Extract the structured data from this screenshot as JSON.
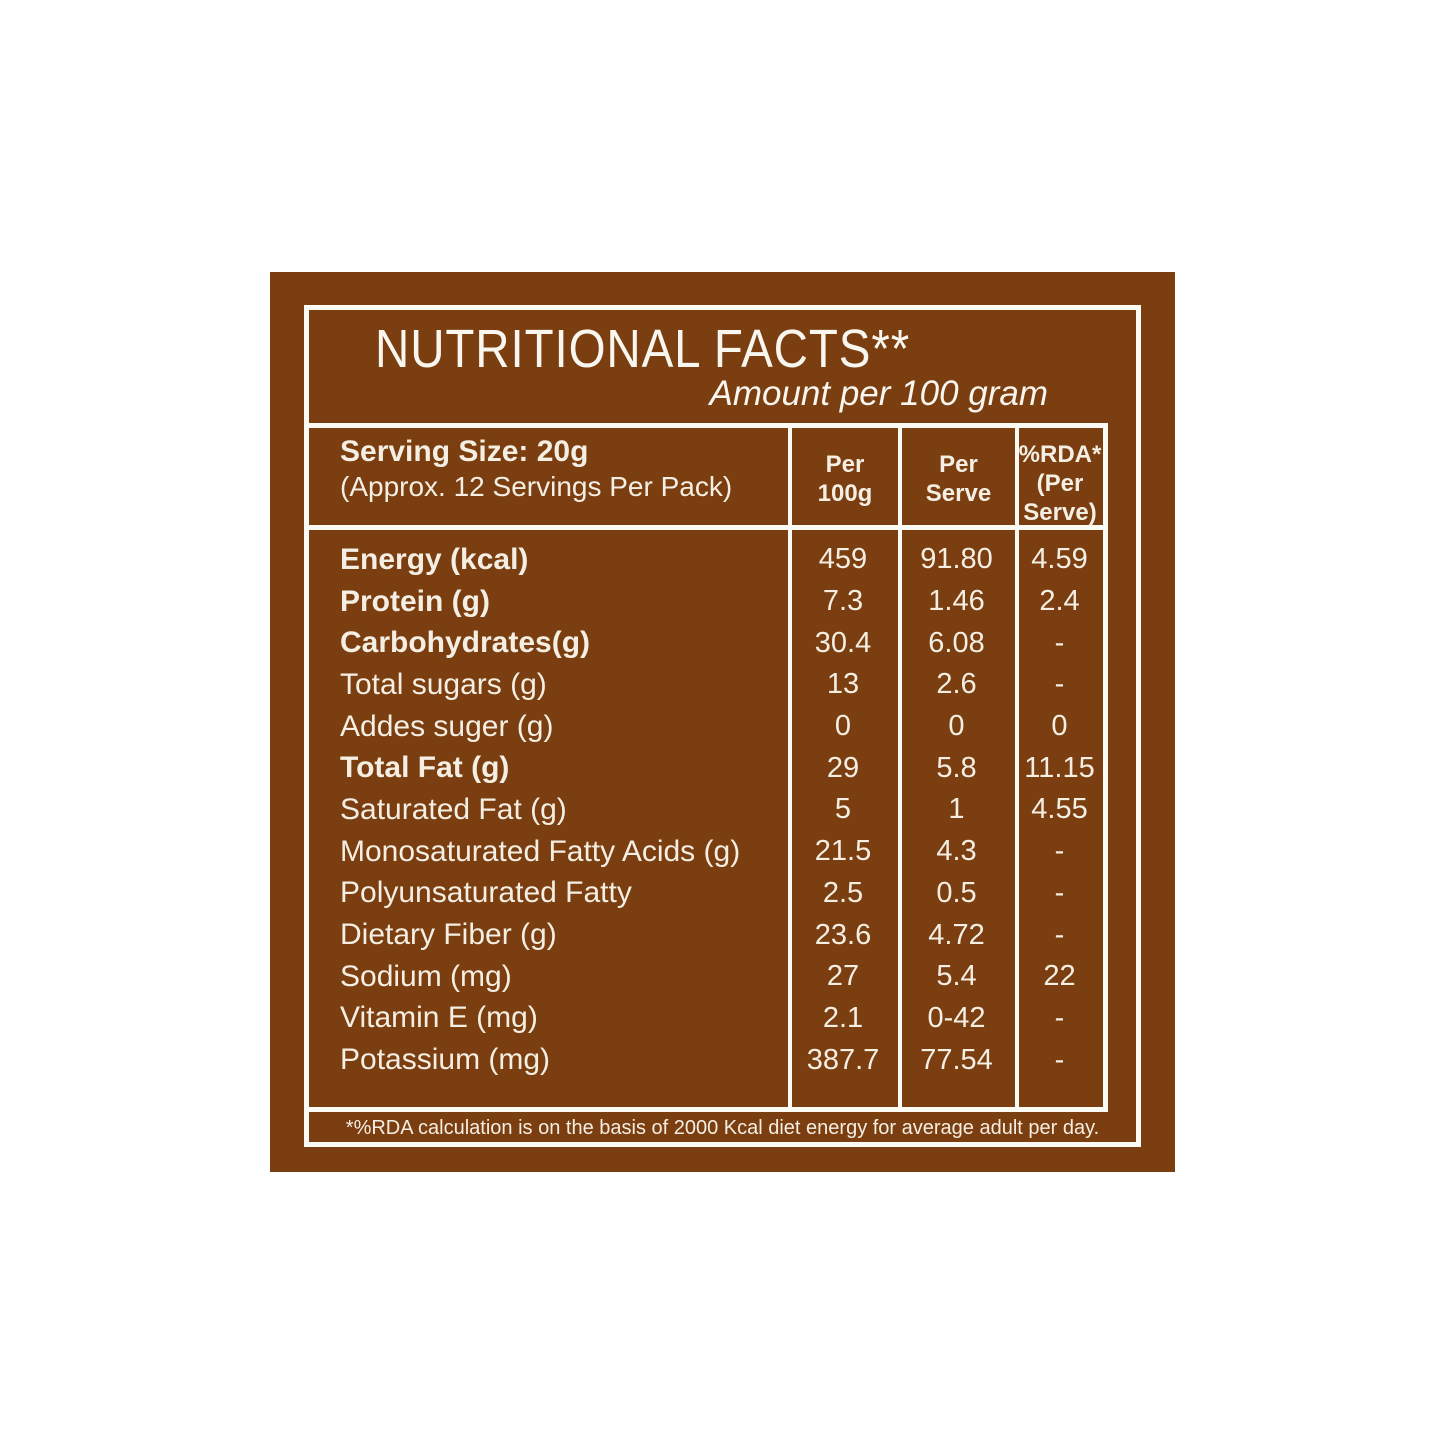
{
  "colors": {
    "page_background": "#FFFFFF",
    "label_brown": "#7A3E10",
    "line_white": "#FCFAF5",
    "text_cream": "#F5EEE3"
  },
  "label": {
    "title": "NUTRITIONAL FACTS**",
    "subtitle": "Amount per 100 gram",
    "footnote": "*%RDA calculation is on the basis of 2000 Kcal diet energy for average adult per day."
  },
  "table": {
    "serving_size_title": "Serving Size: 20g",
    "serving_size_sub": "(Approx. 12 Servings Per Pack)",
    "columns": [
      {
        "id": "per-100g",
        "lines": [
          "Per",
          "100g"
        ]
      },
      {
        "id": "per-serve",
        "lines": [
          "Per",
          "Serve"
        ]
      },
      {
        "id": "rda-per-serve",
        "lines": [
          "%RDA*",
          "(Per",
          "Serve)"
        ]
      }
    ],
    "rows": [
      {
        "label": "Energy (kcal)",
        "bold": true,
        "per_100g": "459",
        "per_serve": "91.80",
        "rda_per_serve": "4.59"
      },
      {
        "label": "Protein (g)",
        "bold": true,
        "per_100g": "7.3",
        "per_serve": "1.46",
        "rda_per_serve": "2.4"
      },
      {
        "label": "Carbohydrates(g)",
        "bold": true,
        "per_100g": "30.4",
        "per_serve": "6.08",
        "rda_per_serve": "-"
      },
      {
        "label": "Total sugars (g)",
        "bold": false,
        "per_100g": "13",
        "per_serve": "2.6",
        "rda_per_serve": "-"
      },
      {
        "label": "Addes suger (g)",
        "bold": false,
        "per_100g": "0",
        "per_serve": "0",
        "rda_per_serve": "0"
      },
      {
        "label": "Total Fat (g)",
        "bold": true,
        "per_100g": "29",
        "per_serve": "5.8",
        "rda_per_serve": "11.15"
      },
      {
        "label": "Saturated Fat (g)",
        "bold": false,
        "per_100g": "5",
        "per_serve": "1",
        "rda_per_serve": "4.55"
      },
      {
        "label": "Monosaturated Fatty Acids (g)",
        "bold": false,
        "per_100g": "21.5",
        "per_serve": "4.3",
        "rda_per_serve": "-"
      },
      {
        "label": "Polyunsaturated Fatty",
        "bold": false,
        "per_100g": "2.5",
        "per_serve": "0.5",
        "rda_per_serve": "-"
      },
      {
        "label": "Dietary Fiber (g)",
        "bold": false,
        "per_100g": "23.6",
        "per_serve": "4.72",
        "rda_per_serve": "-"
      },
      {
        "label": "Sodium (mg)",
        "bold": false,
        "per_100g": "27",
        "per_serve": "5.4",
        "rda_per_serve": "22"
      },
      {
        "label": "Vitamin E (mg)",
        "bold": false,
        "per_100g": "2.1",
        "per_serve": "0-42",
        "rda_per_serve": "-"
      },
      {
        "label": "Potassium (mg)",
        "bold": false,
        "per_100g": "387.7",
        "per_serve": "77.54",
        "rda_per_serve": "-"
      }
    ]
  }
}
